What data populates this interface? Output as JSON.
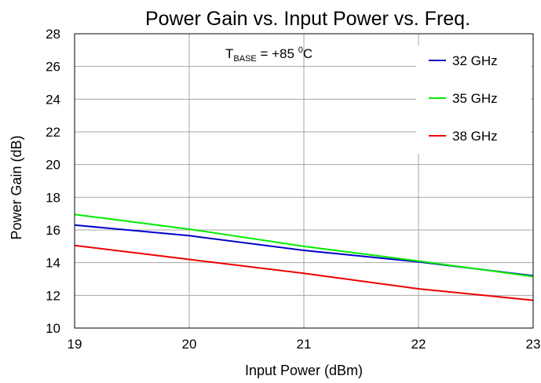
{
  "chart_data": {
    "type": "line",
    "title": "Power Gain vs. Input Power vs. Freq.",
    "xlabel": "Input Power (dBm)",
    "ylabel": "Power Gain (dB)",
    "xlim": [
      19,
      23
    ],
    "ylim": [
      10,
      28
    ],
    "xticks": [
      "19",
      "20",
      "21",
      "22",
      "23"
    ],
    "yticks": [
      "10",
      "12",
      "14",
      "16",
      "18",
      "20",
      "22",
      "24",
      "26",
      "28"
    ],
    "grid": true,
    "legend_position": "top-right",
    "annotation": {
      "prefix": "T",
      "subscript": "BASE",
      "middle": " = +85 ",
      "superscript": "0",
      "suffix": "C"
    },
    "x": [
      19,
      20,
      21,
      22,
      23
    ],
    "series": [
      {
        "name": "32 GHz",
        "color": "#0000cc",
        "values": [
          16.3,
          15.65,
          14.75,
          14.05,
          13.2
        ]
      },
      {
        "name": "35 GHz",
        "color": "#00ee00",
        "values": [
          16.95,
          16.05,
          15.0,
          14.1,
          13.15
        ]
      },
      {
        "name": "38 GHz",
        "color": "#ee0000",
        "values": [
          15.05,
          14.2,
          13.35,
          12.4,
          11.7
        ]
      }
    ]
  }
}
